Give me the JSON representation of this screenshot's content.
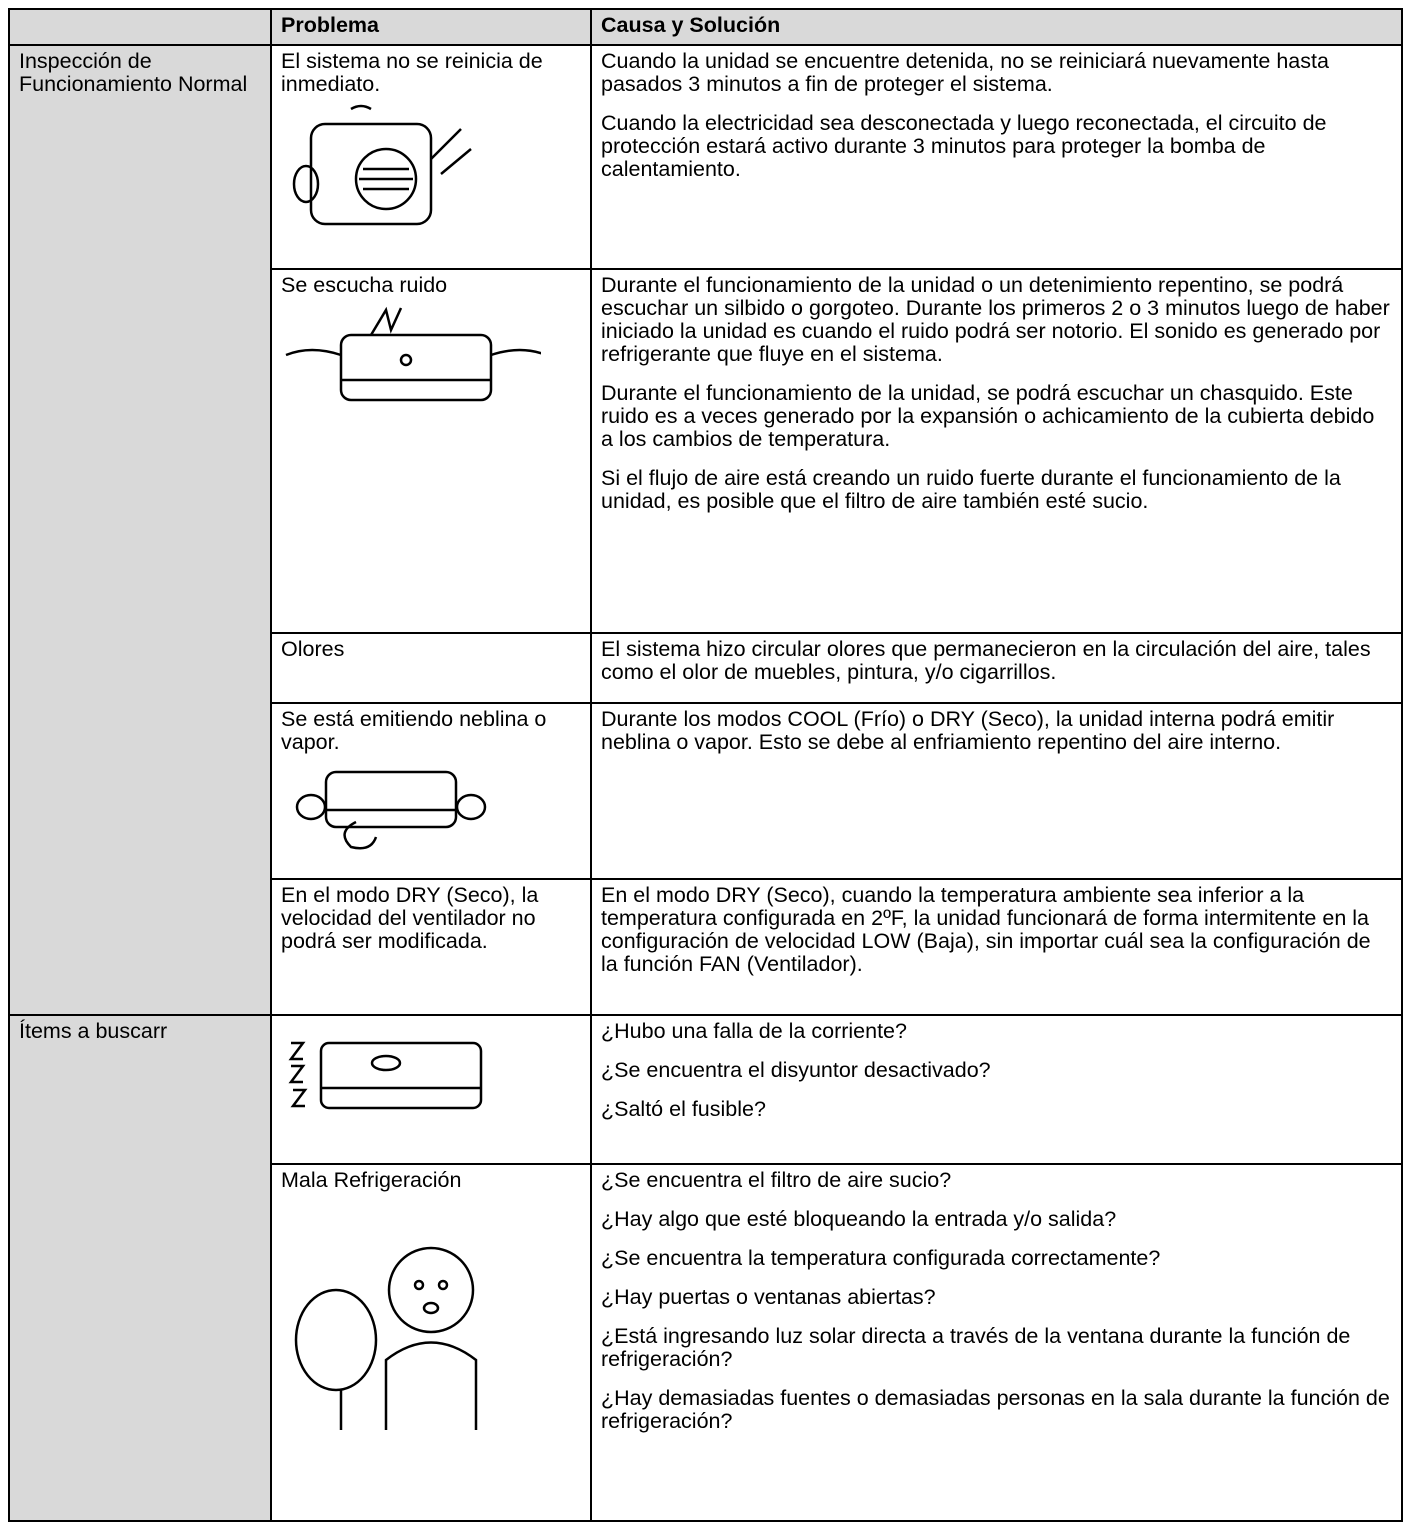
{
  "header": [
    "Problema",
    "Causa y Solución"
  ],
  "sections": [
    {
      "title": "Inspección de Funcionamiento Normal",
      "rows": [
        {
          "problem": "El sistema no se reinicia de inmediato.",
          "solutions": [
            "Cuando la unidad se encuentre detenida, no se reiniciará nuevamente hasta pasados 3 minutos a fin de proteger el sistema.",
            "Cuando la electricidad sea desconectada y luego reconectada, el circuito de protección estará activo durante 3 minutos para proteger la bomba de calentamiento."
          ]
        },
        {
          "problem": "Se escucha ruido",
          "solutions": [
            "Durante el funcionamiento de la unidad o un detenimiento repentino, se podrá escuchar un silbido o gorgoteo. Durante los primeros 2 o 3 minutos luego de haber iniciado la unidad es cuando el ruido podrá ser notorio. El sonido es generado por refrigerante que fluye en el sistema.",
            "Durante el funcionamiento de la unidad, se podrá escuchar un chasquido. Este ruido es a veces generado por la expansión o achicamiento de la cubierta debido a los cambios de temperatura.",
            "Si el flujo de aire está creando un ruido fuerte durante el funcionamiento de la unidad, es posible que el filtro de aire también esté sucio."
          ]
        },
        {
          "problem": "Olores",
          "solutions": [
            "El sistema hizo circular olores que permanecieron en la circulación del aire, tales como el olor de muebles, pintura, y/o cigarrillos."
          ]
        },
        {
          "problem": "Se está emitiendo neblina o vapor.",
          "solutions": [
            "Durante los modos COOL (Frío) o DRY (Seco), la unidad interna podrá emitir neblina o vapor. Esto se debe al enfriamiento repentino del aire interno."
          ]
        },
        {
          "problem": "En el modo DRY (Seco), la velocidad del ventilador no podrá ser modificada.",
          "solutions": [
            "En el modo DRY (Seco), cuando la temperatura ambiente sea inferior a la temperatura configurada en 2ºF, la unidad funcionará de forma intermitente en la configuración de velocidad LOW (Baja), sin importar cuál sea la configuración de la función FAN (Ventilador)."
          ]
        }
      ]
    },
    {
      "title": "Ítems a buscarr",
      "rows": [
        {
          "solutions": [
            "¿Hubo una falla de la corriente?",
            "¿Se encuentra el disyuntor desactivado?",
            "¿Saltó el fusible?"
          ]
        },
        {
          "problem": "Mala Refrigeración",
          "solutions": [
            "¿Se encuentra el filtro de aire sucio?",
            "¿Hay algo que esté bloqueando la entrada y/o salida?",
            "¿Se encuentra la temperatura configurada correctamente?",
            "¿Hay puertas o ventanas abiertas?",
            "¿Está ingresando luz solar directa a través de la ventana durante la función de refrigeración?",
            "¿Hay demasiadas fuentes o demasiadas personas en la sala durante la función de refrigeración?"
          ]
        }
      ]
    }
  ]
}
